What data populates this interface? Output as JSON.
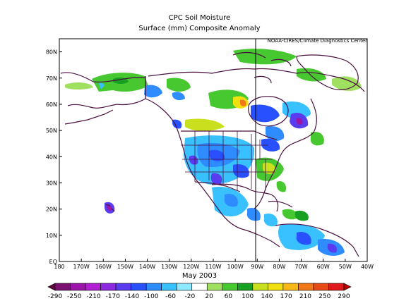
{
  "title": "CPC Soil Moisture",
  "subtitle": "Surface  (mm) Composite Anomaly",
  "credit": "NOAA-CIRES/Climate Diagnostics Center",
  "period": "May 2003",
  "map": {
    "lon_range": [
      -180,
      -40
    ],
    "lat_range": [
      0,
      85
    ],
    "lat_ticks": [
      "EQ",
      "10N",
      "20N",
      "30N",
      "40N",
      "50N",
      "60N",
      "70N",
      "80N"
    ],
    "lon_ticks": [
      "180",
      "170W",
      "160W",
      "150W",
      "140W",
      "130W",
      "120W",
      "110W",
      "100W",
      "90W",
      "80W",
      "70W",
      "60W",
      "50W",
      "40W"
    ],
    "grid": false
  },
  "colorbar": {
    "labels": [
      "-290",
      "-250",
      "-210",
      "-170",
      "-140",
      "-100",
      "-60",
      "-20",
      "20",
      "60",
      "100",
      "140",
      "170",
      "210",
      "250",
      "290"
    ],
    "colors": [
      "#5a0a3c",
      "#7a1070",
      "#9a15a8",
      "#b020d0",
      "#8c28e0",
      "#5a3cf0",
      "#2850ff",
      "#2f8cff",
      "#38c0ff",
      "#8ee8ff",
      "#ffffff",
      "#a0e060",
      "#48c830",
      "#18a020",
      "#c8e01e",
      "#f0e010",
      "#f8b818",
      "#f07818",
      "#e84a18",
      "#e01a1a",
      "#b00000"
    ]
  }
}
